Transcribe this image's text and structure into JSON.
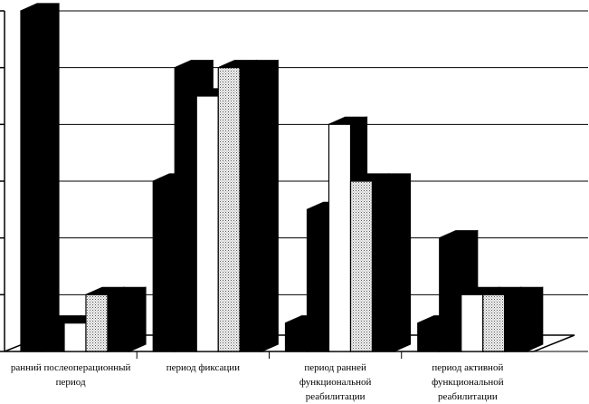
{
  "chart_data": {
    "type": "bar3d",
    "categories": [
      "ранний послеоперационный период",
      "период фиксации",
      "период ранней функциональной реабилитации",
      "период активной функциональной реабилитации"
    ],
    "series": [
      {
        "color": "#000000",
        "values": [
          6.0,
          3.0,
          0.5,
          0.5
        ]
      },
      {
        "color": "#000000",
        "values": [
          0.5,
          5.0,
          2.5,
          2.0
        ]
      },
      {
        "color": "#ffffff",
        "values": [
          0.5,
          4.5,
          4.0,
          1.0
        ]
      },
      {
        "color": "#dddddd",
        "values": [
          1.0,
          5.0,
          3.0,
          1.0
        ]
      },
      {
        "color": "#000000",
        "values": [
          1.0,
          5.0,
          3.0,
          1.0
        ]
      }
    ],
    "ylim": [
      0,
      6
    ],
    "yticks": [
      0,
      1,
      2,
      3,
      4,
      5,
      6
    ],
    "grid": true
  }
}
